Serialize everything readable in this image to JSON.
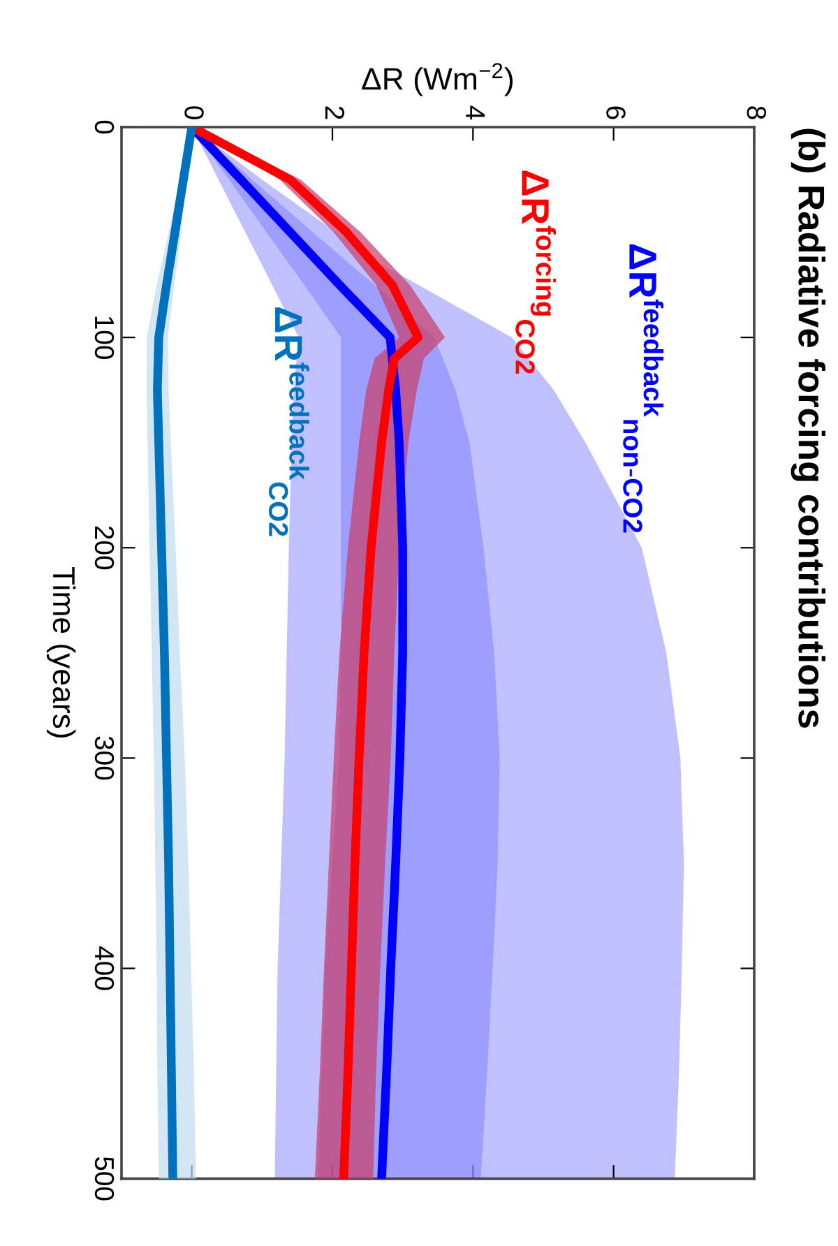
{
  "chart_data": {
    "type": "line",
    "title": "(b) Radiative forcing contributions",
    "xlabel": "ΔR (Wm$^{−2}$)",
    "ylabel": "Time (years)",
    "xlim": [
      -1,
      8
    ],
    "xticks": [
      0,
      2,
      4,
      6,
      8
    ],
    "ylim": [
      500,
      0
    ],
    "yticks": [
      0,
      100,
      200,
      300,
      400,
      500
    ],
    "grid": false,
    "legend": false,
    "line_style": "solid",
    "marker": "none",
    "series": [
      {
        "type": "area",
        "color": "#c0c0ff",
        "x": [
          0,
          0.38,
          0.76,
          0.96,
          1.52,
          1.45,
          1.42,
          1.38,
          1.35,
          1.32,
          1.27,
          1.22,
          1.2,
          1.18,
          6.87,
          6.93,
          6.97,
          7.0,
          6.95,
          6.75,
          6.4,
          5.6,
          5.15,
          4.55,
          2.58,
          2.05,
          1.0,
          0
        ],
        "values": [
          0,
          25,
          50,
          63,
          100,
          125,
          150,
          200,
          250,
          300,
          350,
          400,
          450,
          500,
          500,
          450,
          400,
          350,
          300,
          250,
          200,
          150,
          125,
          100,
          63,
          50,
          25,
          0
        ]
      },
      {
        "type": "area",
        "color": "#9090ff",
        "x": [
          0,
          0.53,
          1.06,
          1.6,
          2.12,
          2.12,
          2.12,
          2.12,
          2.12,
          2.1,
          2.0,
          1.9,
          1.85,
          1.79,
          4.11,
          4.2,
          4.28,
          4.35,
          4.38,
          4.3,
          4.15,
          3.95,
          3.75,
          3.45,
          2.6,
          1.72,
          0.86,
          0
        ],
        "values": [
          0,
          25,
          50,
          75,
          100,
          125,
          150,
          200,
          250,
          300,
          350,
          400,
          450,
          500,
          500,
          450,
          400,
          350,
          300,
          250,
          200,
          150,
          125,
          100,
          75,
          50,
          25,
          0
        ]
      },
      {
        "type": "area",
        "color": "#c8406e",
        "x": [
          0,
          1.25,
          2.02,
          2.62,
          2.95,
          2.6,
          2.48,
          2.38,
          2.22,
          2.1,
          2.02,
          1.95,
          1.88,
          1.82,
          1.75,
          2.58,
          2.62,
          2.68,
          2.75,
          2.83,
          2.88,
          2.95,
          3.08,
          3.2,
          3.3,
          3.6,
          3.1,
          2.4,
          1.55,
          0
        ],
        "values": [
          0,
          25,
          50,
          75,
          100,
          110,
          125,
          150,
          200,
          250,
          300,
          350,
          400,
          450,
          500,
          500,
          450,
          400,
          350,
          300,
          250,
          200,
          150,
          125,
          110,
          100,
          75,
          50,
          25,
          0
        ]
      },
      {
        "type": "area",
        "color": "#c0dcee",
        "x": [
          0,
          -0.17,
          -0.33,
          -0.5,
          -0.64,
          -0.64,
          -0.63,
          -0.6,
          -0.57,
          -0.54,
          -0.52,
          -0.5,
          -0.49,
          -0.47,
          0.06,
          0.03,
          -0.01,
          -0.05,
          -0.1,
          -0.17,
          -0.23,
          -0.3,
          -0.33,
          -0.34,
          -0.25,
          -0.15,
          -0.08,
          0
        ],
        "values": [
          0,
          25,
          50,
          75,
          100,
          125,
          150,
          200,
          250,
          300,
          350,
          400,
          450,
          500,
          500,
          450,
          400,
          350,
          300,
          250,
          200,
          150,
          125,
          100,
          75,
          50,
          25,
          0
        ]
      },
      {
        "name": "ΔR$^{feedback}$$_{non-CO2}$",
        "color": "#0000ff",
        "x": [
          0,
          0.7,
          1.4,
          2.1,
          2.82,
          2.9,
          2.95,
          3.0,
          3.0,
          2.96,
          2.9,
          2.83,
          2.77,
          2.7
        ],
        "values": [
          0,
          25,
          50,
          75,
          100,
          125,
          150,
          200,
          250,
          300,
          350,
          400,
          450,
          500
        ]
      },
      {
        "name": "ΔR$^{forcing}$$_{CO2}$",
        "color": "#ff0000",
        "x": [
          0,
          1.4,
          2.2,
          2.85,
          3.22,
          2.88,
          2.8,
          2.7,
          2.55,
          2.45,
          2.38,
          2.32,
          2.27,
          2.22,
          2.16
        ],
        "values": [
          0,
          25,
          50,
          75,
          100,
          110,
          125,
          150,
          200,
          250,
          300,
          350,
          400,
          450,
          500
        ]
      },
      {
        "name": "ΔR$^{feedback}$$_{CO2}$",
        "color": "#0072bd",
        "x": [
          0,
          -0.12,
          -0.24,
          -0.36,
          -0.47,
          -0.49,
          -0.47,
          -0.43,
          -0.39,
          -0.36,
          -0.33,
          -0.31,
          -0.29,
          -0.27
        ],
        "values": [
          0,
          25,
          50,
          75,
          100,
          125,
          150,
          200,
          250,
          300,
          350,
          400,
          450,
          500
        ]
      }
    ]
  }
}
